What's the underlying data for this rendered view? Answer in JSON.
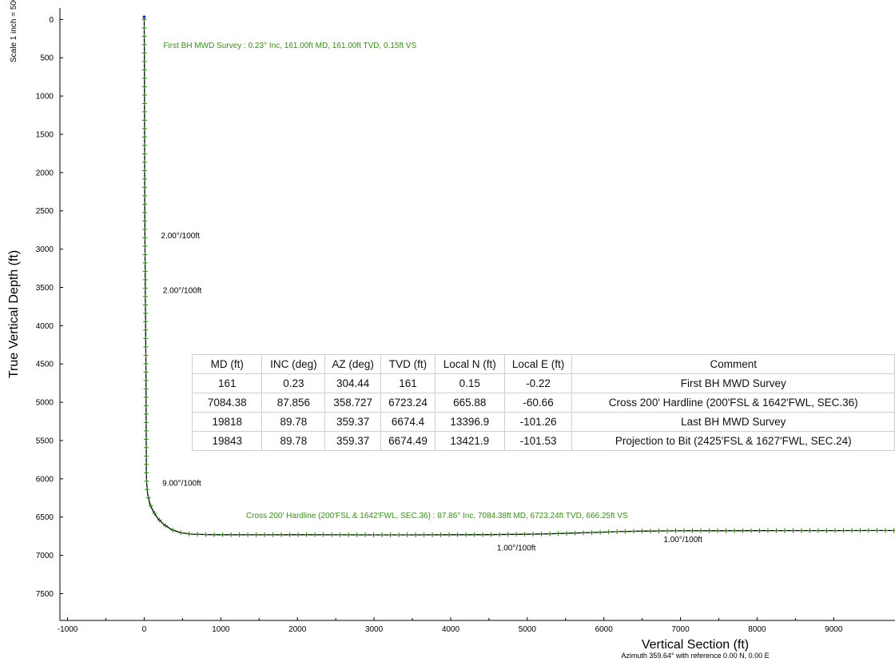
{
  "scale_note": "Scale 1 inch = 500",
  "chart_data": {
    "type": "line",
    "xlabel": "Vertical Section (ft)",
    "xlabel_sub": "Azimuth 359.64° with reference 0.00 N, 0.00 E",
    "ylabel": "True Vertical Depth (ft)",
    "xlim": [
      -1100,
      9800
    ],
    "ylim": [
      -150,
      7850
    ],
    "y_inverted": true,
    "x_ticks": [
      -1000,
      0,
      1000,
      2000,
      3000,
      4000,
      5000,
      6000,
      7000,
      8000,
      9000
    ],
    "y_ticks": [
      0,
      500,
      1000,
      1500,
      2000,
      2500,
      3000,
      3500,
      4000,
      4500,
      5000,
      5500,
      6000,
      6500,
      7000,
      7500
    ],
    "series": [
      {
        "color": "#000000",
        "marker_color": "#2e7d1a",
        "points": [
          [
            0,
            0
          ],
          [
            0,
            161
          ],
          [
            2,
            500
          ],
          [
            4,
            1000
          ],
          [
            5,
            1500
          ],
          [
            6,
            2000
          ],
          [
            8,
            2500
          ],
          [
            10,
            2900
          ],
          [
            14,
            3500
          ],
          [
            18,
            4000
          ],
          [
            22,
            4500
          ],
          [
            24,
            5000
          ],
          [
            26,
            5500
          ],
          [
            28,
            5900
          ],
          [
            32,
            6050
          ],
          [
            45,
            6200
          ],
          [
            75,
            6330
          ],
          [
            120,
            6430
          ],
          [
            180,
            6520
          ],
          [
            260,
            6600
          ],
          [
            360,
            6665
          ],
          [
            480,
            6705
          ],
          [
            620,
            6723
          ],
          [
            800,
            6728
          ],
          [
            1000,
            6730
          ],
          [
            1500,
            6731
          ],
          [
            2000,
            6730
          ],
          [
            2500,
            6731
          ],
          [
            3000,
            6732
          ],
          [
            3500,
            6732
          ],
          [
            4000,
            6730
          ],
          [
            4500,
            6729
          ],
          [
            5000,
            6724
          ],
          [
            5300,
            6718
          ],
          [
            5600,
            6710
          ],
          [
            5900,
            6700
          ],
          [
            6200,
            6690
          ],
          [
            6500,
            6683
          ],
          [
            6800,
            6680
          ],
          [
            7000,
            6679
          ],
          [
            7500,
            6678
          ],
          [
            8000,
            6677
          ],
          [
            8500,
            6676
          ],
          [
            9000,
            6676
          ],
          [
            9500,
            6675
          ],
          [
            9800,
            6675
          ]
        ]
      }
    ],
    "annotations": [
      {
        "text": "First BH MWD Survey : 0.23° Inc, 161.00ft MD, 161.00ft TVD, 0.15ft VS",
        "x": 0,
        "y": 161,
        "color": "#3a8a1e"
      },
      {
        "text": "2.00°/100ft",
        "x": 10,
        "y": 2900,
        "color": "#000000"
      },
      {
        "text": "2.00°/100ft",
        "x": 14,
        "y": 3500,
        "color": "#000000"
      },
      {
        "text": "9.00°/100ft",
        "x": 28,
        "y": 5900,
        "color": "#000000"
      },
      {
        "text": "Cross 200' Hardline (200'FSL & 1642'FWL, SEC.36) : 87.86° Inc, 7084.38ft MD, 6723.24ft TVD, 666.25ft VS",
        "x": 620,
        "y": 6723,
        "color": "#3a8a1e"
      },
      {
        "text": "1.00°/100ft",
        "x": 4500,
        "y": 6729,
        "color": "#000000"
      },
      {
        "text": "1.00°/100ft",
        "x": 6800,
        "y": 6680,
        "color": "#000000"
      }
    ]
  },
  "survey_table": {
    "headers": [
      "MD (ft)",
      "INC (deg)",
      "AZ (deg)",
      "TVD (ft)",
      "Local N (ft)",
      "Local E (ft)",
      "Comment"
    ],
    "rows": [
      [
        "161",
        "0.23",
        "304.44",
        "161",
        "0.15",
        "-0.22",
        "First BH MWD Survey"
      ],
      [
        "7084.38",
        "87.856",
        "358.727",
        "6723.24",
        "665.88",
        "-60.66",
        "Cross 200' Hardline (200'FSL & 1642'FWL, SEC.36)"
      ],
      [
        "19818",
        "89.78",
        "359.37",
        "6674.4",
        "13396.9",
        "-101.26",
        "Last BH MWD Survey"
      ],
      [
        "19843",
        "89.78",
        "359.37",
        "6674.49",
        "13421.9",
        "-101.53",
        "Projection to Bit (2425'FSL & 1627'FWL, SEC.24)"
      ]
    ]
  }
}
